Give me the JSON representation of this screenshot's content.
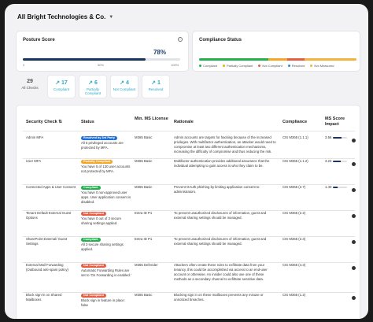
{
  "org": {
    "name": "All Bright Technologies & Co."
  },
  "posture": {
    "title": "Posture Score",
    "score": "78%",
    "score_fraction": 0.78,
    "ticks": [
      "0",
      "50%",
      "100%"
    ]
  },
  "compliance": {
    "title": "Compliance Status",
    "legend": [
      {
        "label": "Compliant",
        "color": "#22b14c",
        "share": 0.44
      },
      {
        "label": "Partially Compliant",
        "color": "#f5a623",
        "share": 0.12
      },
      {
        "label": "Not Compliant",
        "color": "#e85c41",
        "share": 0.11
      },
      {
        "label": "Resolved",
        "color": "#1e8fe0",
        "share": 0.0
      },
      {
        "label": "Not Measured",
        "color": "#f0b43c",
        "share": 0.33
      }
    ]
  },
  "stats": [
    {
      "num": "29",
      "label": "All Checks",
      "icon": "",
      "color": "#555"
    },
    {
      "num": "17",
      "label": "Compliant",
      "icon": "↗",
      "color": "#2aa8c4"
    },
    {
      "num": "6",
      "label": "Partially Compliant",
      "icon": "↗",
      "color": "#2aa8c4"
    },
    {
      "num": "4",
      "label": "Not Compliant",
      "icon": "↗",
      "color": "#2aa8c4"
    },
    {
      "num": "1",
      "label": "Resolved",
      "icon": "↗",
      "color": "#2aa8c4"
    }
  ],
  "table": {
    "headers": [
      "Security Check",
      "Status",
      "Min. MS License",
      "Rationale",
      "Compliance",
      "MS Score Impact"
    ],
    "rows": [
      {
        "check": "Admin MFA",
        "badge": "Resolved by 3rd Party",
        "badge_color": "#1e6fd9",
        "status_text": "All 6 privileged accounts are protected by MFA.",
        "license": "M365 Basic",
        "rationale": "Admin accounts are targets for hacking because of the increased privileges. With multifactor authentication, an attacker would need to compromise at least two different authentication mechanisms, increasing the difficulty of compromise and thus reducing the risk.",
        "compliance": "CIS M365 (1.1.1)",
        "impact": "3.56",
        "impact_max": "(10.8%)",
        "impact_frac": 0.6
      },
      {
        "check": "User MFA",
        "badge": "Partially Compliant",
        "badge_color": "#f5a623",
        "status_text": "You have 5 of 130 user accounts not protected by MFA.",
        "license": "M365 Basic",
        "rationale": "Multifactor authentication provides additional assurance that the individual attempting to gain access is who they claim to be.",
        "compliance": "CIS M365 (1.1.2)",
        "impact": "3.23",
        "impact_max": "(9.8%)",
        "impact_frac": 0.55
      },
      {
        "check": "Connected Apps & User Consent",
        "badge": "Compliant",
        "badge_color": "#22b14c",
        "status_text": "You have 0 non-approved user apps. User application consent is disabled.",
        "license": "M365 Basic",
        "rationale": "Prevent OAuth phishing by limiting application consent to administrators.",
        "compliance": "CIS M365 (2.7)",
        "impact": "1.40",
        "impact_max": "(4.3%)",
        "impact_frac": 0.3
      },
      {
        "check": "Tenant Default External Guest Options",
        "badge": "Not Compliant",
        "badge_color": "#e85c41",
        "status_text": "You have 0 out of 3 secure sharing settings applied.",
        "license": "Entra ID P1",
        "rationale": "To prevent unauthorized disclosures of information, guest and external sharing settings should be managed.",
        "compliance": "CIS M365 (2.2)",
        "impact": "",
        "impact_max": "",
        "impact_frac": 0
      },
      {
        "check": "SharePoint External/ Guest Settings",
        "badge": "Compliant",
        "badge_color": "#22b14c",
        "status_text": "All 3 secure sharing settings applied.",
        "license": "Entra ID P1",
        "rationale": "To prevent unauthorized disclosures of information, guest and external sharing settings should be managed.",
        "compliance": "CIS M365 (2.3)",
        "impact": "",
        "impact_max": "",
        "impact_frac": 0
      },
      {
        "check": "External Mail Forwarding (Outbound anti-spam policy)",
        "badge": "Not Compliant",
        "badge_color": "#e85c41",
        "status_text": "Automatic Forwarding Rules are set to 'On Forwarding is enabled.'",
        "license": "M365 Defender",
        "rationale": "Attackers often create these rules to exfiltrate data from your tenancy, this could be accomplished via access to an end-user account or otherwise. An insider could also use one of these methods as a secondary channel to exfiltrate sensitive data.",
        "compliance": "CIS M365 (4.3)",
        "impact": "",
        "impact_max": "",
        "impact_frac": 0
      },
      {
        "check": "Block sign-in on Shared Mailboxes",
        "badge": "Not Compliant",
        "badge_color": "#e85c41",
        "status_text": "Block sign in feature in place: false",
        "license": "M365 Basic",
        "rationale": "Blocking sign in on these mailboxes prevents any misuse or unnoticed breaches.",
        "compliance": "CIS M365 (1.2)",
        "impact": "",
        "impact_max": "",
        "impact_frac": 0
      }
    ]
  }
}
